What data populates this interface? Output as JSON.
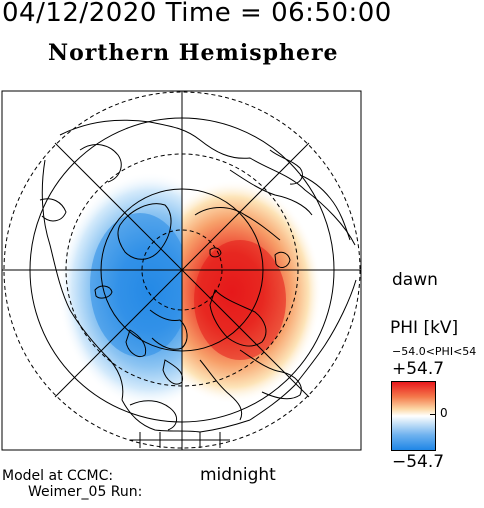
{
  "header": {
    "date": "04/12/2020",
    "time_label": "Time",
    "equals": "=",
    "time": "06:50:00",
    "full": "04/12/2020 Time = 06:50:00"
  },
  "title": "Northern Hemisphere",
  "map": {
    "dawn_label": "dawn",
    "midnight_label": "midnight"
  },
  "colorbar": {
    "title": "PHI [kV]",
    "range_text": "−54.0<PHI<54",
    "max": "+54.7",
    "min": "−54.7",
    "mid": "0",
    "colors": {
      "positive": "#e8181c",
      "negative": "#1f86e6",
      "zero": "#ffffff"
    }
  },
  "footer": {
    "line1": "Model at CCMC:",
    "line2": "Weimer_05 Run:"
  }
}
